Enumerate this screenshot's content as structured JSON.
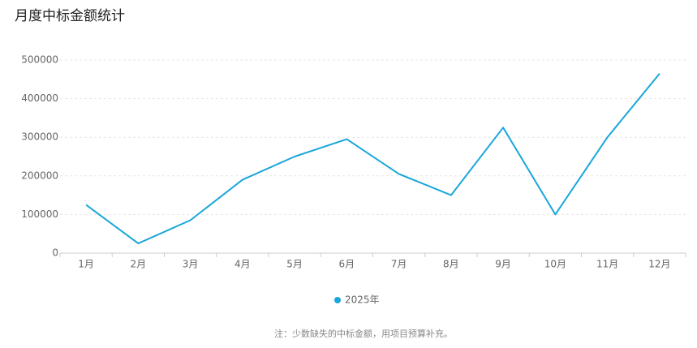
{
  "chart_data": {
    "type": "line",
    "title": "月度中标金额统计",
    "categories": [
      "1月",
      "2月",
      "3月",
      "4月",
      "5月",
      "6月",
      "7月",
      "8月",
      "9月",
      "10月",
      "11月",
      "12月"
    ],
    "series": [
      {
        "name": "2025年",
        "color": "#1aa6db",
        "values": [
          125000,
          25000,
          85000,
          190000,
          250000,
          295000,
          205000,
          150000,
          325000,
          100000,
          300000,
          465000
        ]
      }
    ],
    "ylim": [
      0,
      500000
    ],
    "yticks": [
      0,
      100000,
      200000,
      300000,
      400000,
      500000
    ],
    "grid": true,
    "note": "注：少数缺失的中标金额，用项目预算补充。"
  }
}
